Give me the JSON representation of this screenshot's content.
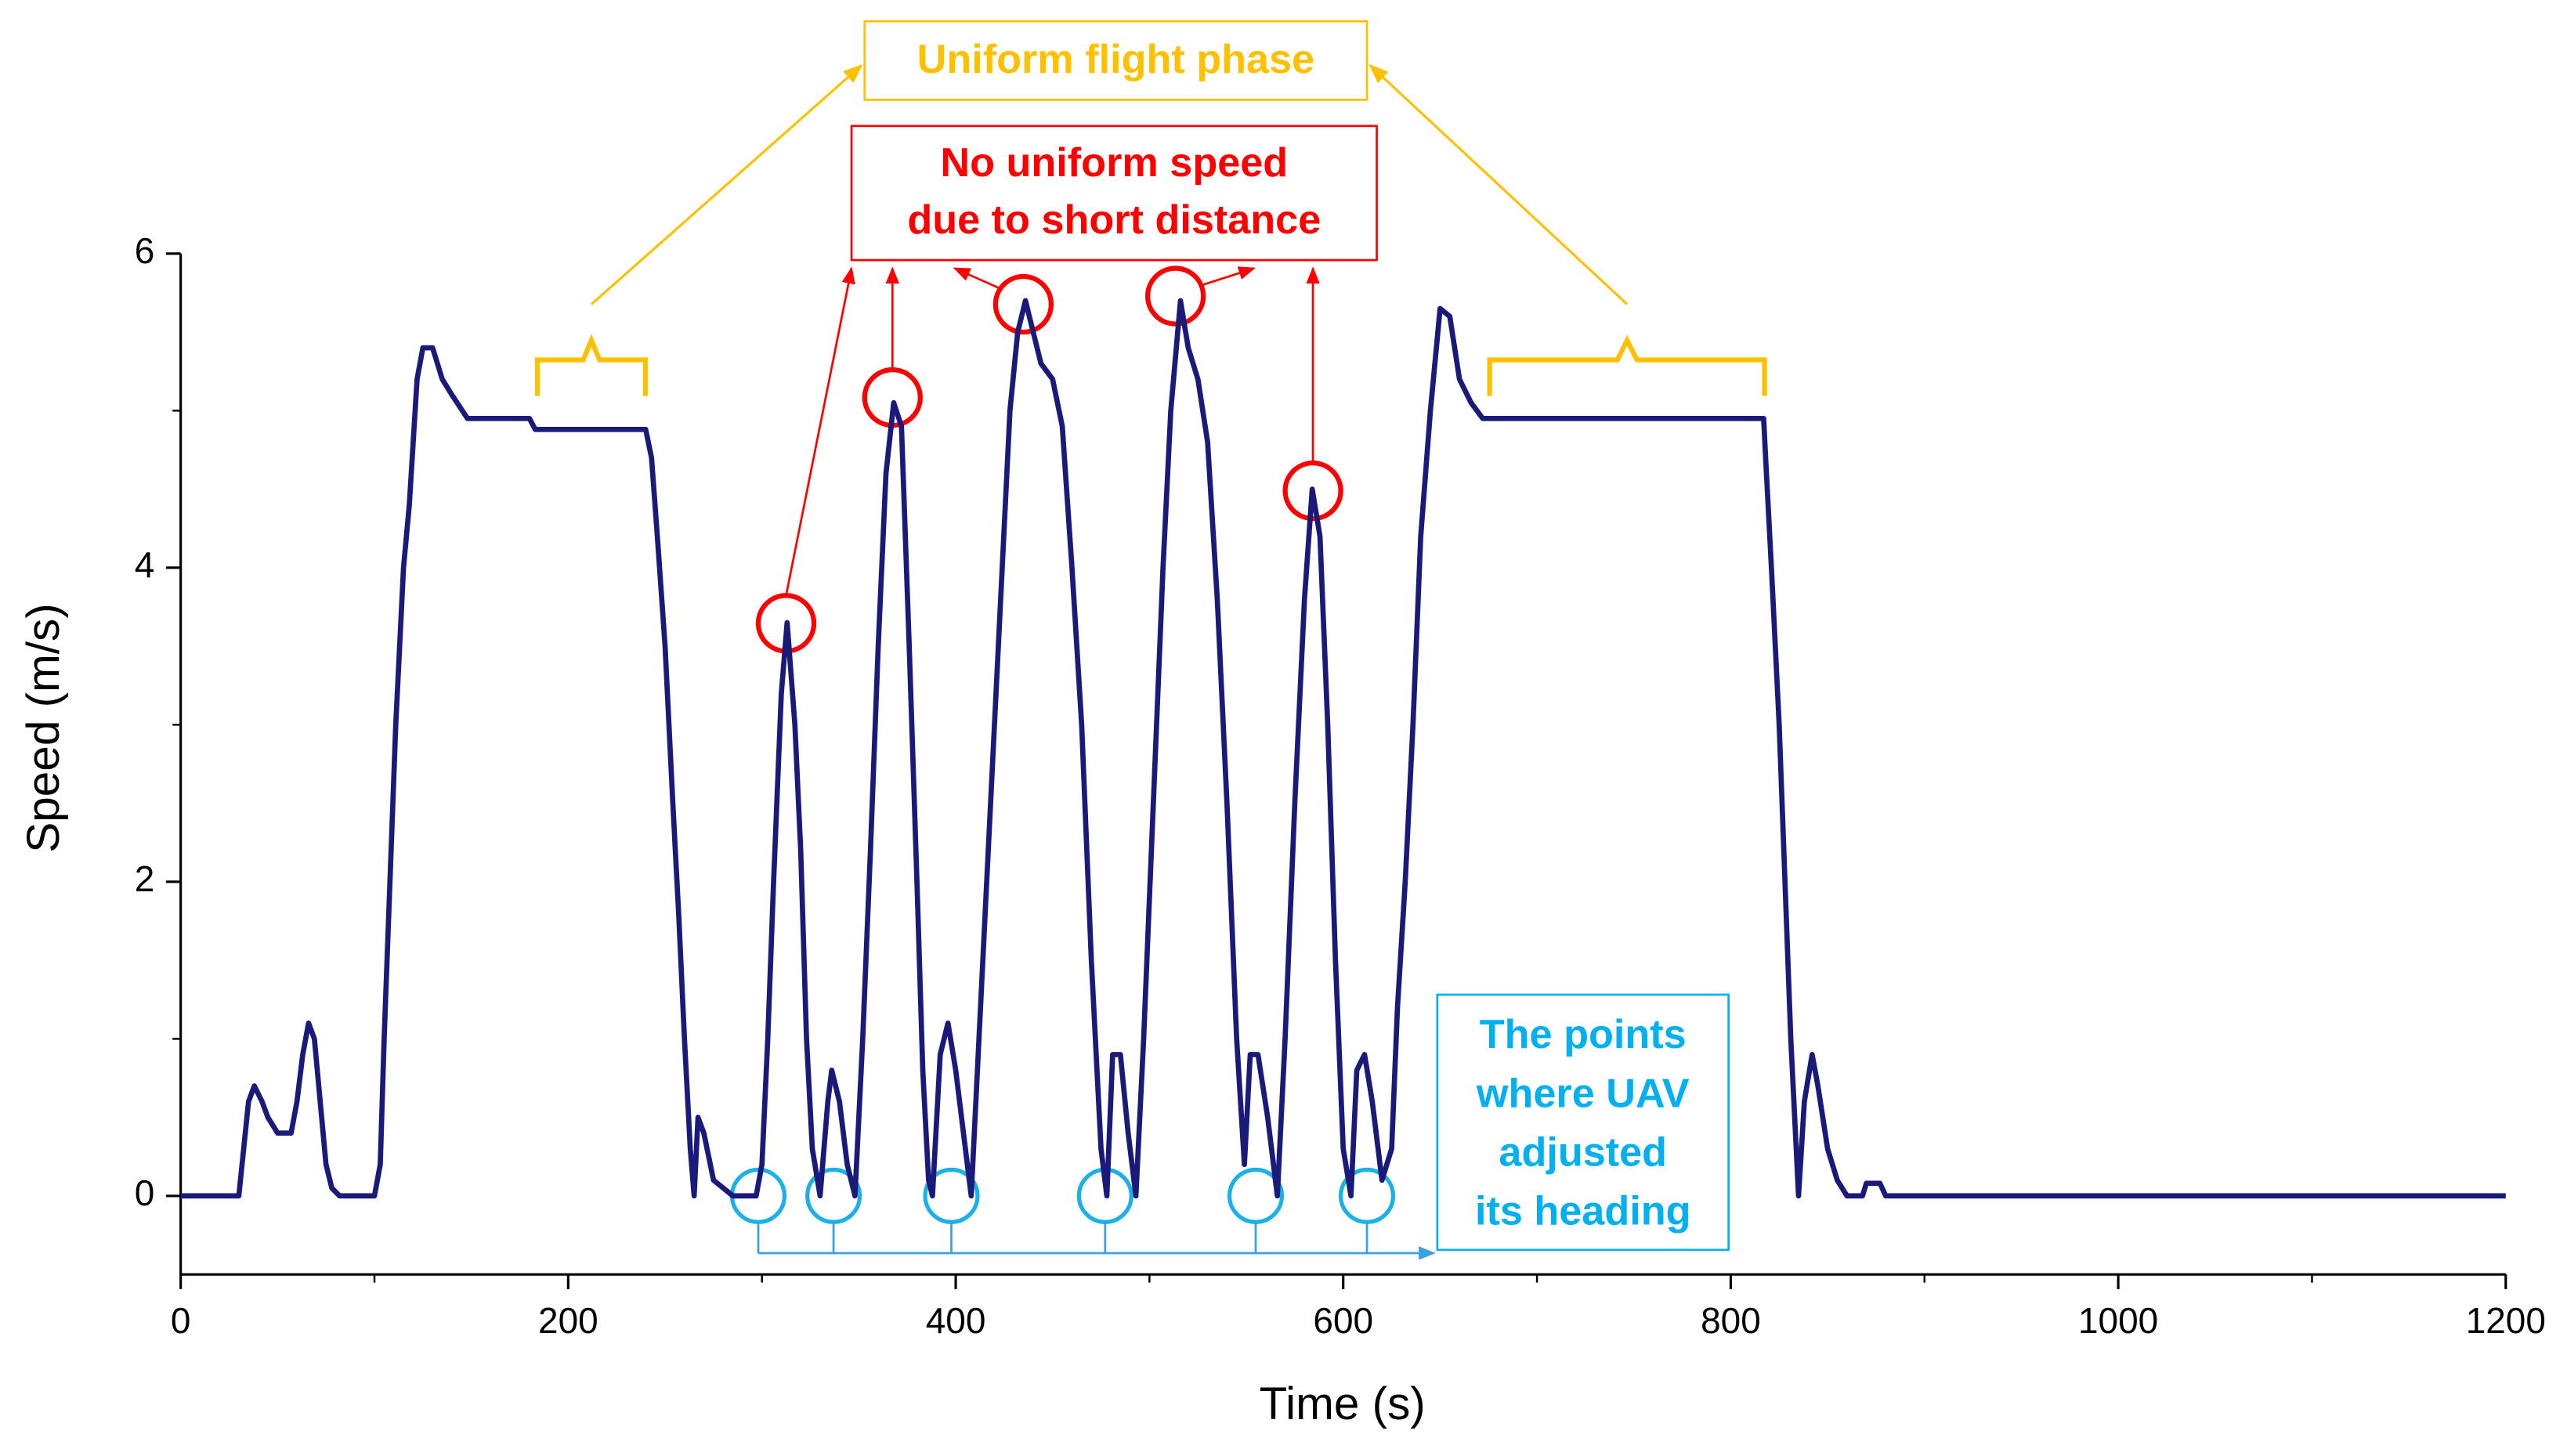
{
  "chart_data": {
    "type": "line",
    "x_label": "Time (s)",
    "y_label": "Speed (m/s)",
    "xlim": [
      0,
      1200
    ],
    "ylim": [
      -0.5,
      6
    ],
    "xticks": [
      0,
      200,
      400,
      600,
      800,
      1000,
      1200
    ],
    "xminorticks": [
      100,
      300,
      500,
      700,
      900,
      1100
    ],
    "yticks": [
      0,
      2,
      4,
      6
    ],
    "yminorticks": [
      1,
      3,
      5
    ],
    "color": "#1a1a7a",
    "x": [
      0,
      30,
      35,
      38,
      42,
      45,
      50,
      57,
      60,
      63,
      66,
      69,
      72,
      75,
      78,
      82,
      100,
      103,
      105,
      108,
      111,
      115,
      118,
      122,
      125,
      130,
      135,
      140,
      148,
      180,
      183,
      240,
      243,
      246,
      250,
      254,
      257,
      260,
      263,
      265,
      267,
      270,
      275,
      280,
      285,
      297,
      300,
      303,
      306,
      310,
      313,
      317,
      320,
      323,
      326,
      330,
      334,
      336,
      340,
      344,
      348,
      352,
      356,
      360,
      364,
      368,
      372,
      376,
      380,
      383,
      386,
      388,
      392,
      396,
      400,
      404,
      408,
      412,
      418,
      424,
      428,
      432,
      436,
      440,
      444,
      450,
      455,
      460,
      465,
      470,
      475,
      478,
      481,
      485,
      489,
      493,
      497,
      502,
      507,
      511,
      516,
      520,
      525,
      530,
      535,
      540,
      545,
      549,
      552,
      556,
      561,
      566,
      570,
      575,
      580,
      584,
      588,
      592,
      596,
      600,
      604,
      607,
      611,
      615,
      620,
      625,
      628,
      632,
      636,
      640,
      645,
      650,
      655,
      660,
      666,
      672,
      817,
      818,
      821,
      825,
      828,
      831,
      835,
      838,
      842,
      845,
      850,
      855,
      860,
      868,
      870,
      877,
      880,
      1200
    ],
    "values": [
      0,
      0,
      0.6,
      0.7,
      0.6,
      0.5,
      0.4,
      0.4,
      0.6,
      0.9,
      1.1,
      1.0,
      0.6,
      0.2,
      0.05,
      0,
      0,
      0.2,
      1.0,
      2.0,
      3.0,
      4.0,
      4.4,
      5.2,
      5.4,
      5.4,
      5.2,
      5.1,
      4.95,
      4.95,
      4.88,
      4.88,
      4.7,
      4.2,
      3.5,
      2.5,
      1.8,
      1.0,
      0.3,
      0,
      0.5,
      0.4,
      0.1,
      0.05,
      0,
      0,
      0.2,
      1.0,
      2.0,
      3.2,
      3.65,
      3.0,
      2.2,
      1.0,
      0.3,
      0,
      0.6,
      0.8,
      0.6,
      0.2,
      0,
      1.0,
      2.2,
      3.5,
      4.6,
      5.05,
      4.9,
      3.5,
      2.0,
      0.8,
      0.1,
      0,
      0.9,
      1.1,
      0.8,
      0.4,
      0,
      1.0,
      2.5,
      4.0,
      5.0,
      5.5,
      5.7,
      5.5,
      5.3,
      5.2,
      4.9,
      4.0,
      3.0,
      1.5,
      0.3,
      0,
      0.9,
      0.9,
      0.4,
      0,
      1.0,
      2.5,
      4.0,
      5.0,
      5.7,
      5.4,
      5.2,
      4.8,
      3.8,
      2.5,
      1.0,
      0.2,
      0.9,
      0.9,
      0.5,
      0,
      1.0,
      2.5,
      3.8,
      4.5,
      4.2,
      3.0,
      1.5,
      0.3,
      0,
      0.8,
      0.9,
      0.6,
      0.1,
      0.3,
      1.2,
      2.0,
      3.0,
      4.2,
      5.0,
      5.65,
      5.6,
      5.2,
      5.05,
      4.95,
      4.95,
      4.7,
      4.0,
      3.0,
      2.0,
      1.0,
      0,
      0.6,
      0.9,
      0.7,
      0.3,
      0.1,
      0,
      0,
      0.08,
      0.08,
      0,
      0
    ],
    "annotations": [
      {
        "lines": [
          "Uniform flight phase"
        ],
        "color": "#ffc000"
      },
      {
        "lines": [
          "No uniform speed",
          "due to short distance"
        ],
        "color": "#ff0000"
      },
      {
        "lines": [
          "The points",
          "where UAV",
          "adjusted",
          "its heading"
        ],
        "color": "#00b0f0"
      }
    ]
  }
}
